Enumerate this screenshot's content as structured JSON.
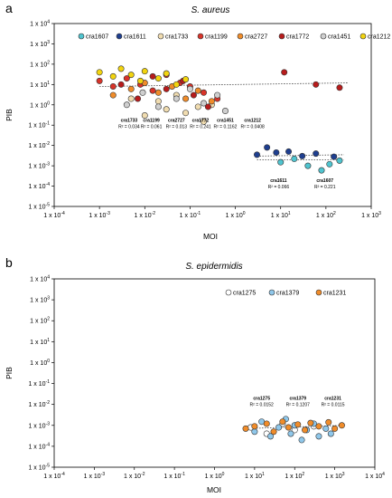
{
  "chart_data": [
    {
      "type": "scatter",
      "panel_label": "a",
      "title": "S. aureus",
      "xlabel": "MOI",
      "ylabel": "PIB",
      "x_scale": "log",
      "y_scale": "log",
      "xlim": [
        0.0001,
        1000
      ],
      "ylim": [
        1e-05,
        10000
      ],
      "x_ticks": [
        "1 x 10-4",
        "1 x 10-3",
        "1 x 10-2",
        "1 x 10-1",
        "1 x 100",
        "1 x 101",
        "1 x 102",
        "1 x 103"
      ],
      "y_ticks": [
        "1 x 104",
        "1 x 103",
        "1 x 102",
        "1 x 101",
        "1 x 100",
        "1 x 10-1",
        "1 x 10-2",
        "1 x 10-3",
        "1 x 10-4",
        "1 x 10-5"
      ],
      "legend_position": "top",
      "grid": false,
      "series": [
        {
          "name": "cra1607",
          "color": "#4fc4cf",
          "x": [
            10,
            20,
            40,
            80,
            120,
            200
          ],
          "y": [
            0.0015,
            0.0022,
            0.001,
            0.0006,
            0.0012,
            0.0018
          ]
        },
        {
          "name": "cra1611",
          "color": "#1f3f8f",
          "x": [
            3,
            5,
            8,
            15,
            30,
            60,
            150
          ],
          "y": [
            0.0035,
            0.008,
            0.0045,
            0.005,
            0.003,
            0.004,
            0.0028
          ]
        },
        {
          "name": "cra1733",
          "color": "#f0dcb0",
          "x": [
            0.005,
            0.01,
            0.02,
            0.03,
            0.05,
            0.08,
            0.15,
            0.2,
            0.3
          ],
          "y": [
            2,
            0.3,
            1.5,
            0.6,
            3,
            0.4,
            0.8,
            0.15,
            1
          ]
        },
        {
          "name": "cra1199",
          "color": "#d8342a",
          "x": [
            0.001,
            0.002,
            0.004,
            0.008,
            0.015,
            0.03,
            0.06,
            0.1,
            0.2,
            0.4
          ],
          "y": [
            15,
            8,
            20,
            10,
            5,
            30,
            12,
            8,
            4,
            2
          ]
        },
        {
          "name": "cra2727",
          "color": "#f08c2a",
          "x": [
            0.002,
            0.005,
            0.01,
            0.02,
            0.04,
            0.08,
            0.15,
            0.3
          ],
          "y": [
            3,
            6,
            12,
            4,
            8,
            2,
            5,
            1.5
          ]
        },
        {
          "name": "cra1772",
          "color": "#b71c1c",
          "x": [
            0.003,
            0.007,
            0.015,
            0.03,
            0.07,
            0.12,
            0.25,
            12,
            60,
            200
          ],
          "y": [
            10,
            2,
            25,
            6,
            15,
            3,
            0.8,
            40,
            10,
            7
          ]
        },
        {
          "name": "cra1451",
          "color": "#cfcfcf",
          "x": [
            0.004,
            0.009,
            0.02,
            0.05,
            0.1,
            0.2,
            0.4,
            0.6
          ],
          "y": [
            1,
            4,
            0.8,
            2,
            6,
            1.2,
            3,
            0.5
          ]
        },
        {
          "name": "cra1212",
          "color": "#f2d40f",
          "x": [
            0.001,
            0.002,
            0.003,
            0.005,
            0.008,
            0.01,
            0.02,
            0.03,
            0.05,
            0.08
          ],
          "y": [
            40,
            25,
            60,
            30,
            15,
            45,
            20,
            35,
            10,
            18
          ]
        }
      ],
      "trendlines": [
        {
          "x": [
            0.001,
            300
          ],
          "y": [
            8,
            12
          ]
        },
        {
          "x": [
            3,
            250
          ],
          "y": [
            0.003,
            0.0035
          ]
        },
        {
          "x": [
            3,
            250
          ],
          "y": [
            0.002,
            0.002
          ]
        }
      ],
      "annotations": [
        {
          "name": "cra1733",
          "r2": "R² = 0.034",
          "x": 0.0045,
          "y": 0.15
        },
        {
          "name": "cra1199",
          "r2": "R² = 0.061",
          "x": 0.014,
          "y": 0.15
        },
        {
          "name": "cra2727",
          "r2": "R² = 0.013",
          "x": 0.05,
          "y": 0.15
        },
        {
          "name": "cra1772",
          "r2": "R² = 0.241",
          "x": 0.17,
          "y": 0.15
        },
        {
          "name": "cra1451",
          "r2": "R² = 0.1162",
          "x": 0.6,
          "y": 0.15
        },
        {
          "name": "cra1212",
          "r2": "R² = 0.0408",
          "x": 2.4,
          "y": 0.15
        },
        {
          "name": "cra1611",
          "r2": "R² = 0.066",
          "x": 9,
          "y": 0.00016
        },
        {
          "name": "cra1607",
          "r2": "R² = 0.221",
          "x": 95,
          "y": 0.00016
        }
      ]
    },
    {
      "type": "scatter",
      "panel_label": "b",
      "title": "S. epidermidis",
      "xlabel": "MOI",
      "ylabel": "PIB",
      "x_scale": "log",
      "y_scale": "log",
      "xlim": [
        0.0001,
        10000
      ],
      "ylim": [
        1e-05,
        10000
      ],
      "x_ticks": [
        "1 x 10-4",
        "1 x 10-3",
        "1 x 10-2",
        "1 x 10-1",
        "1 x 100",
        "1 x 101",
        "1 x 102",
        "1 x 103",
        "1 x 104"
      ],
      "y_ticks": [
        "1 x 104",
        "1 x 103",
        "1 x 102",
        "1 x 101",
        "1 x 100",
        "1 x 10-1",
        "1 x 10-2",
        "1 x 10-3",
        "1 x 10-4",
        "1 x 10-5"
      ],
      "legend_position": "top-right",
      "grid": false,
      "series": [
        {
          "name": "cra1275",
          "color": "#ffffff",
          "x": [
            8,
            20,
            50,
            100,
            300
          ],
          "y": [
            0.0008,
            0.0004,
            0.0012,
            0.0006,
            0.0009
          ]
        },
        {
          "name": "cra1379",
          "color": "#8fc7ea",
          "x": [
            10,
            15,
            25,
            40,
            60,
            80,
            100,
            150,
            200,
            300,
            400,
            600,
            800
          ],
          "y": [
            0.0005,
            0.0015,
            0.0003,
            0.0008,
            0.002,
            0.0004,
            0.001,
            0.0002,
            0.0006,
            0.0012,
            0.0003,
            0.0007,
            0.0004
          ]
        },
        {
          "name": "cra1231",
          "color": "#f08c2a",
          "x": [
            6,
            10,
            20,
            30,
            50,
            70,
            120,
            180,
            250,
            400,
            700,
            1000,
            1500
          ],
          "y": [
            0.0007,
            0.0009,
            0.0012,
            0.0005,
            0.0015,
            0.0008,
            0.0011,
            0.0006,
            0.0013,
            0.0009,
            0.0014,
            0.0007,
            0.001
          ]
        }
      ],
      "trendlines": [
        {
          "x": [
            6,
            1500
          ],
          "y": [
            0.0007,
            0.001
          ]
        }
      ],
      "annotations": [
        {
          "name": "cra1275",
          "r2": "R² = 0.0152",
          "x": 15,
          "y": 0.017
        },
        {
          "name": "cra1379",
          "r2": "R² = 0.1207",
          "x": 120,
          "y": 0.017
        },
        {
          "name": "cra1231",
          "r2": "R² = 0.0115",
          "x": 900,
          "y": 0.017
        }
      ]
    }
  ]
}
